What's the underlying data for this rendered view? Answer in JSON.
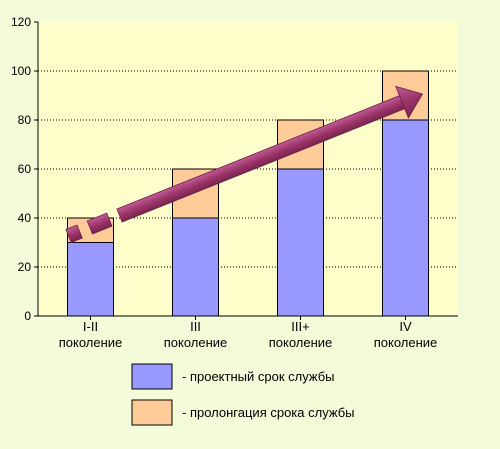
{
  "chart_data": {
    "type": "bar",
    "stacked": true,
    "categories": [
      [
        "I-II",
        "поколение"
      ],
      [
        "III",
        "поколение"
      ],
      [
        "III+",
        "поколение"
      ],
      [
        "IV",
        "поколение"
      ]
    ],
    "series": [
      {
        "name": "- проектный срок службы",
        "color": "#9999ff",
        "values": [
          30,
          40,
          60,
          80
        ]
      },
      {
        "name": "- пролонгация срока службы",
        "color": "#ffcc99",
        "values": [
          10,
          20,
          20,
          20
        ]
      }
    ],
    "ylim": [
      0,
      120
    ],
    "yticks": [
      0,
      20,
      40,
      60,
      80,
      100,
      120
    ],
    "grid": true,
    "legend_position": "bottom",
    "trend_arrow_color": "#993366"
  }
}
